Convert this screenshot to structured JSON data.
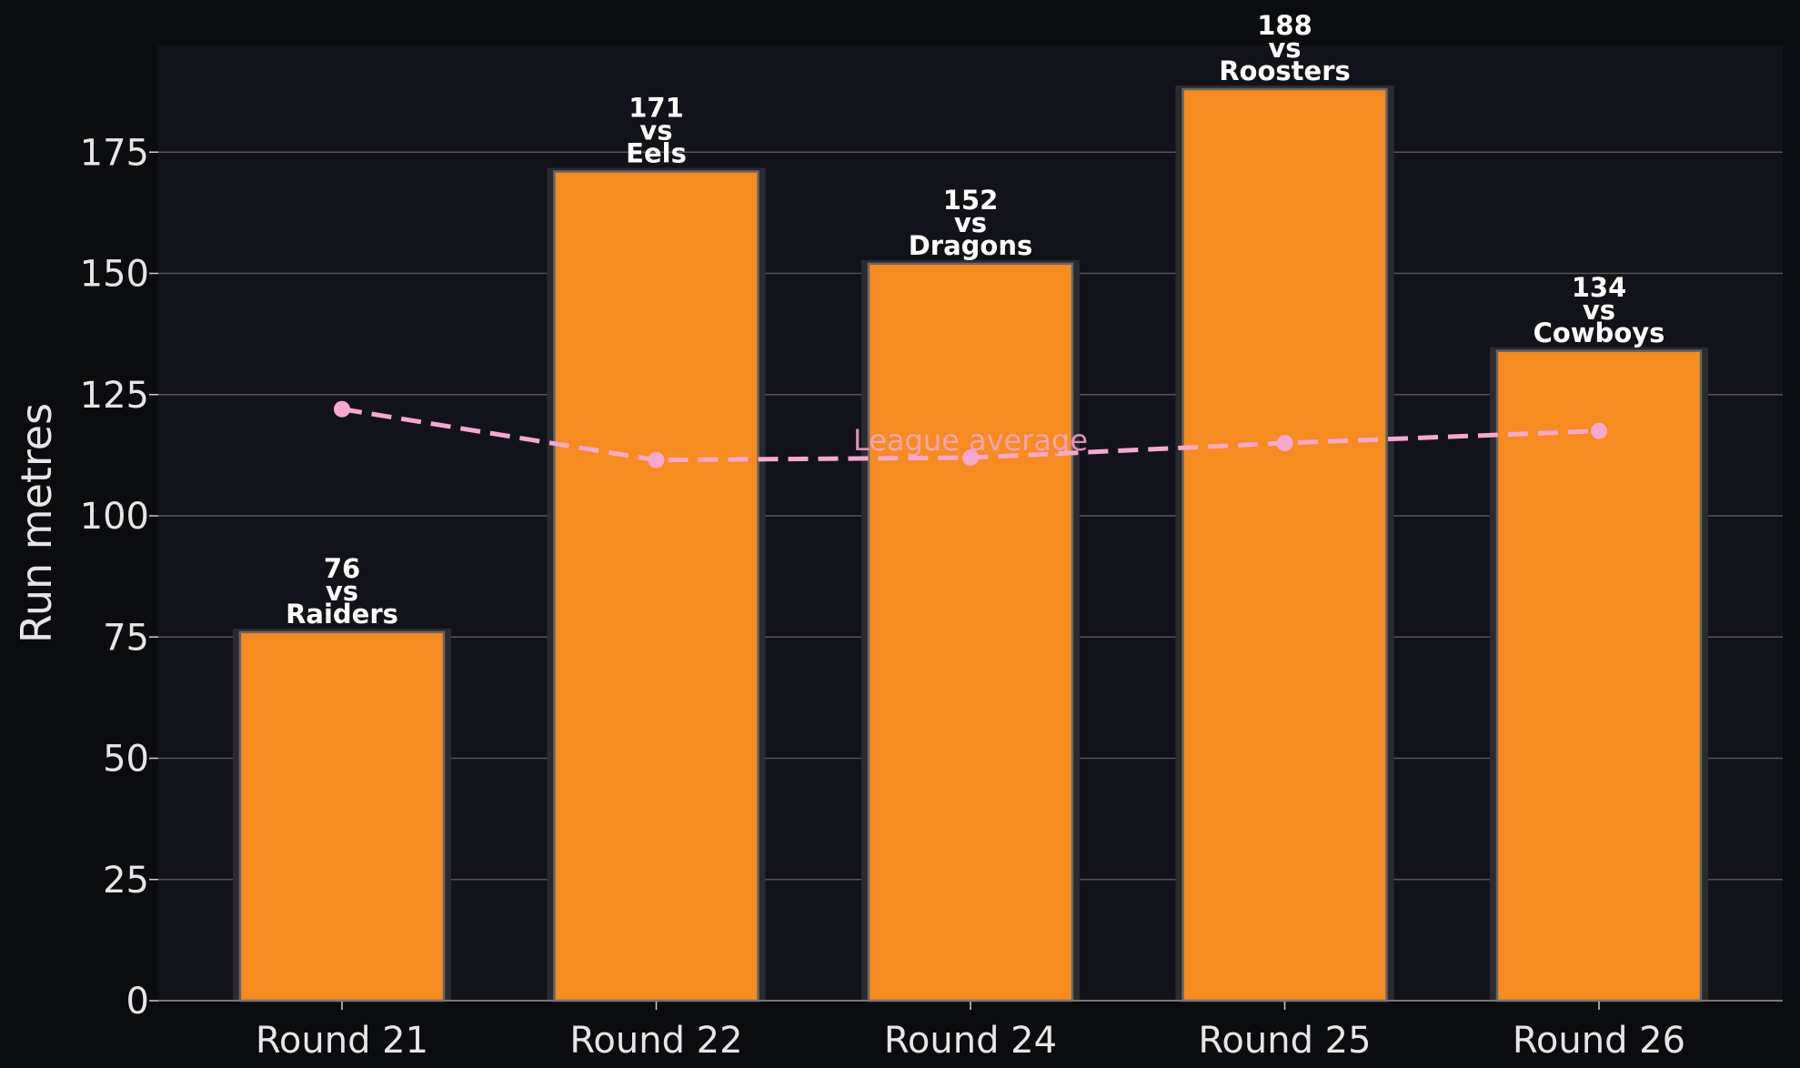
{
  "chart_data": {
    "type": "bar",
    "categories": [
      "Round 21",
      "Round 22",
      "Round 24",
      "Round 25",
      "Round 26"
    ],
    "values": [
      76,
      171,
      152,
      188,
      134
    ],
    "opponents": [
      "Raiders",
      "Eels",
      "Dragons",
      "Roosters",
      "Cowboys"
    ],
    "vs_text": "vs",
    "title": "",
    "xlabel": "",
    "ylabel": "Run metres",
    "ylim": [
      0,
      197
    ],
    "yticks": [
      0,
      25,
      50,
      75,
      100,
      125,
      150,
      175
    ],
    "grid": "horizontal",
    "series": [
      {
        "name": "Run metres",
        "type": "bar",
        "values": [
          76,
          171,
          152,
          188,
          134
        ]
      },
      {
        "name": "League average",
        "type": "line",
        "style": "dashed",
        "values": [
          122,
          111.5,
          112,
          115,
          117.5
        ]
      }
    ],
    "annotations": [
      {
        "text": "League average",
        "series": "League average"
      }
    ]
  },
  "colors": {
    "background": "#0b0c10",
    "plot_background": "#12131a",
    "bar": "#f68b1f",
    "bar_edge": "#666666",
    "average_line": "#f7a8d0",
    "grid": "#555555",
    "text": "#e6e6e6"
  }
}
